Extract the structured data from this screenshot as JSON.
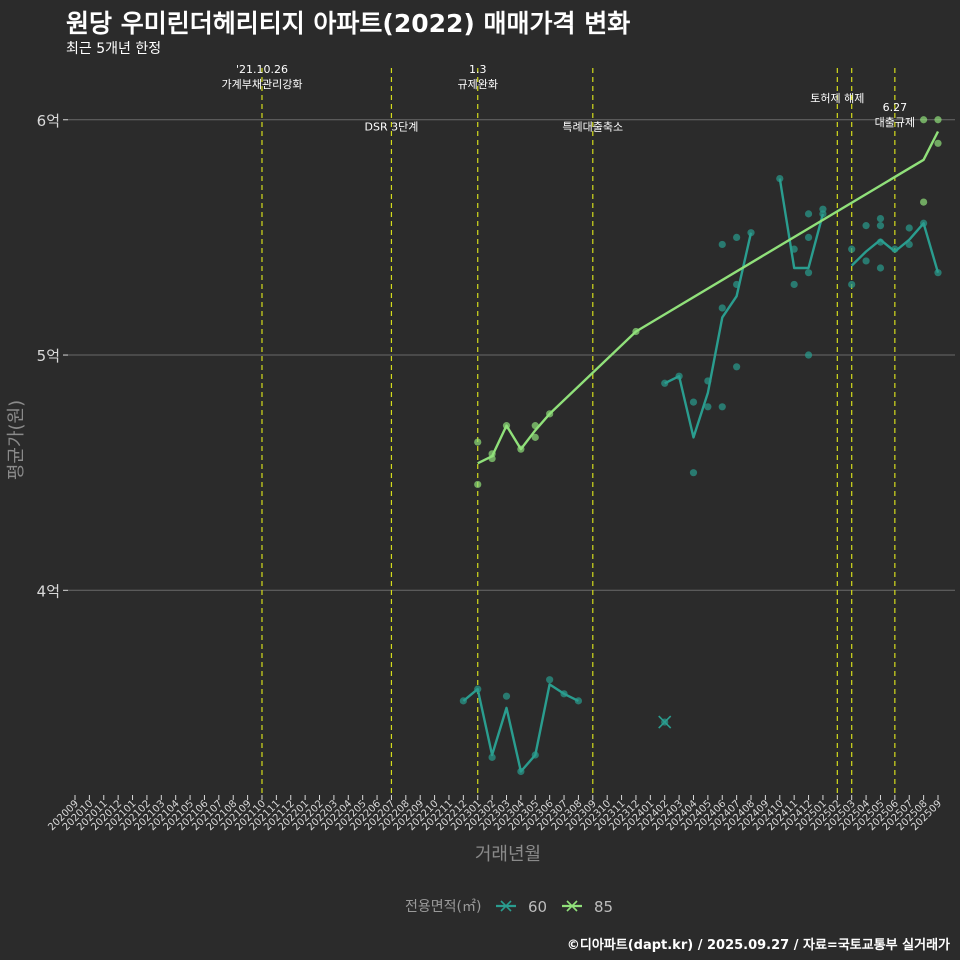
{
  "title": "원당 우미린더헤리티지 아파트(2022) 매매가격 변화",
  "subtitle": "최근 5개년 한정",
  "caption": "©디아파트(dapt.kr) / 2025.09.27 / 자료=국토교통부 실거래가",
  "colors": {
    "background": "#2b2b2b",
    "grid": "#6a6a6a",
    "event_line": "#d4dc1c",
    "series_60": "#2a9d8f",
    "series_85": "#90e07a",
    "text": "#ffffff",
    "axis_text": "#d9d9d9",
    "axis_title": "#8a8a8a"
  },
  "chart_data": {
    "type": "scatter+line",
    "xlabel": "거래년월",
    "ylabel": "평균가(원)",
    "y_unit": "억",
    "ylim": [
      3.13,
      6.22
    ],
    "yticks": [
      4,
      5,
      6
    ],
    "ytick_labels": [
      "4억",
      "5억",
      "6억"
    ],
    "months": [
      "202009",
      "202010",
      "202011",
      "202012",
      "202101",
      "202102",
      "202103",
      "202104",
      "202105",
      "202106",
      "202107",
      "202108",
      "202109",
      "202110",
      "202111",
      "202112",
      "202201",
      "202202",
      "202203",
      "202204",
      "202205",
      "202206",
      "202207",
      "202208",
      "202209",
      "202210",
      "202211",
      "202212",
      "202301",
      "202302",
      "202303",
      "202304",
      "202305",
      "202306",
      "202307",
      "202308",
      "202309",
      "202310",
      "202311",
      "202312",
      "202401",
      "202402",
      "202403",
      "202404",
      "202405",
      "202406",
      "202407",
      "202408",
      "202409",
      "202410",
      "202411",
      "202412",
      "202501",
      "202502",
      "202503",
      "202504",
      "202505",
      "202506",
      "202507",
      "202508",
      "202509"
    ],
    "events": [
      {
        "month": "202110",
        "label_lines": [
          "'21.10.26",
          "가계부채관리강화"
        ],
        "label_y": 6.16
      },
      {
        "month": "202207",
        "label_lines": [
          "DSR 3단계"
        ],
        "label_y": 5.98
      },
      {
        "month": "202301",
        "label_lines": [
          "1.3",
          "규제완화"
        ],
        "label_y": 6.16
      },
      {
        "month": "202309",
        "label_lines": [
          "특례대출축소"
        ],
        "label_y": 5.98
      },
      {
        "month": "202502",
        "label_lines": [
          "토허제 해제"
        ],
        "label_y": 6.1
      },
      {
        "month": "202503",
        "label_lines": [],
        "label_y": 6.1
      },
      {
        "month": "202506",
        "label_lines": [
          "6.27",
          "대출규제"
        ],
        "label_y": 6.0
      }
    ],
    "legend": {
      "title": "전용면적(㎡)",
      "position": "bottom"
    },
    "series": [
      {
        "name": "60",
        "line": [
          [
            "202212",
            3.53
          ],
          [
            "202301",
            3.58
          ],
          [
            "202302",
            3.3
          ],
          [
            "202303",
            3.5
          ],
          [
            "202304",
            3.23
          ],
          [
            "202305",
            3.3
          ],
          [
            "202306",
            3.6
          ],
          [
            "202307",
            3.56
          ],
          [
            "202308",
            3.53
          ],
          [
            "202402",
            4.88
          ],
          [
            "202403",
            4.91
          ],
          [
            "202404",
            4.65
          ],
          [
            "202405",
            4.84
          ],
          [
            "202406",
            5.16
          ],
          [
            "202407",
            5.25
          ],
          [
            "202408",
            5.52
          ],
          [
            "202410",
            5.75
          ],
          [
            "202411",
            5.37
          ],
          [
            "202412",
            5.37
          ],
          [
            "202501",
            5.6
          ],
          [
            "202503",
            5.38
          ],
          [
            "202504",
            5.44
          ],
          [
            "202505",
            5.49
          ],
          [
            "202506",
            5.44
          ],
          [
            "202507",
            5.49
          ],
          [
            "202508",
            5.56
          ],
          [
            "202509",
            5.35
          ]
        ],
        "points": [
          [
            "202212",
            3.53
          ],
          [
            "202301",
            3.58
          ],
          [
            "202302",
            3.29
          ],
          [
            "202303",
            3.55
          ],
          [
            "202304",
            3.23
          ],
          [
            "202305",
            3.3
          ],
          [
            "202306",
            3.62
          ],
          [
            "202307",
            3.56
          ],
          [
            "202308",
            3.53
          ],
          [
            "202402",
            4.88
          ],
          [
            "202403",
            4.91
          ],
          [
            "202404",
            4.8
          ],
          [
            "202404",
            4.5
          ],
          [
            "202405",
            4.78
          ],
          [
            "202405",
            4.89
          ],
          [
            "202406",
            4.78
          ],
          [
            "202406",
            5.2
          ],
          [
            "202406",
            5.47
          ],
          [
            "202407",
            4.95
          ],
          [
            "202407",
            5.3
          ],
          [
            "202407",
            5.5
          ],
          [
            "202408",
            5.52
          ],
          [
            "202410",
            5.75
          ],
          [
            "202411",
            5.3
          ],
          [
            "202411",
            5.45
          ],
          [
            "202412",
            5.35
          ],
          [
            "202412",
            5.5
          ],
          [
            "202412",
            5.6
          ],
          [
            "202412",
            5.0
          ],
          [
            "202501",
            5.6
          ],
          [
            "202501",
            5.62
          ],
          [
            "202503",
            5.3
          ],
          [
            "202503",
            5.45
          ],
          [
            "202504",
            5.4
          ],
          [
            "202504",
            5.55
          ],
          [
            "202505",
            5.37
          ],
          [
            "202505",
            5.48
          ],
          [
            "202505",
            5.55
          ],
          [
            "202505",
            5.58
          ],
          [
            "202506",
            5.45
          ],
          [
            "202507",
            5.47
          ],
          [
            "202507",
            5.54
          ],
          [
            "202508",
            5.56
          ],
          [
            "202509",
            5.35
          ]
        ],
        "cross_marks": [
          [
            "202402",
            3.44
          ]
        ]
      },
      {
        "name": "85",
        "line": [
          [
            "202301",
            4.54
          ],
          [
            "202302",
            4.57
          ],
          [
            "202303",
            4.7
          ],
          [
            "202304",
            4.6
          ],
          [
            "202305",
            4.68
          ],
          [
            "202306",
            4.75
          ],
          [
            "202312",
            5.1
          ],
          [
            "202508",
            5.83
          ],
          [
            "202509",
            5.95
          ]
        ],
        "points": [
          [
            "202301",
            4.63
          ],
          [
            "202301",
            4.45
          ],
          [
            "202302",
            4.58
          ],
          [
            "202302",
            4.56
          ],
          [
            "202303",
            4.7
          ],
          [
            "202304",
            4.6
          ],
          [
            "202305",
            4.7
          ],
          [
            "202305",
            4.65
          ],
          [
            "202306",
            4.75
          ],
          [
            "202312",
            5.1
          ],
          [
            "202508",
            6.0
          ],
          [
            "202508",
            5.65
          ],
          [
            "202509",
            6.0
          ],
          [
            "202509",
            5.9
          ]
        ]
      }
    ]
  }
}
